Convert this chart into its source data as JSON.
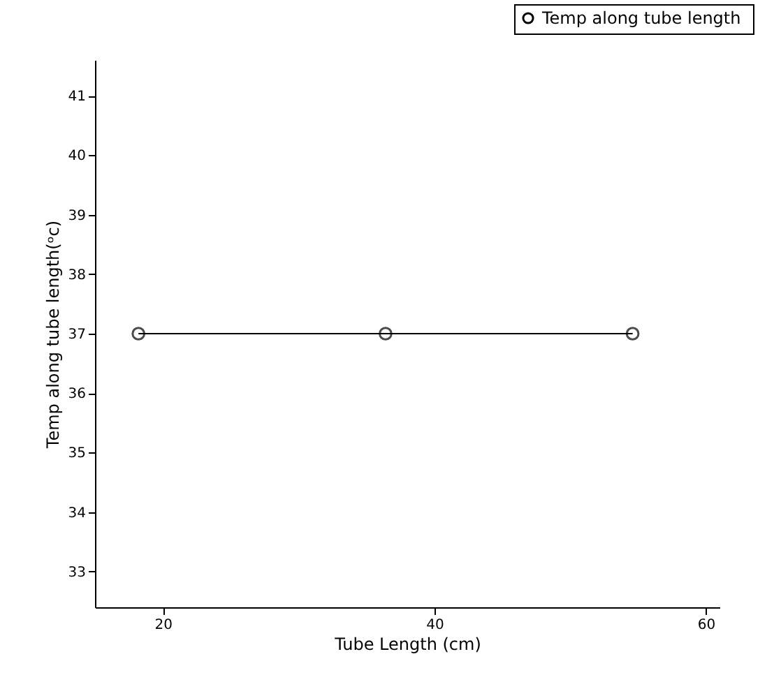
{
  "chart_data": {
    "type": "line",
    "xlabel": "Tube Length (cm)",
    "ylabel": "Temp along tube length(ᵒc)",
    "x": [
      18.2,
      36.4,
      54.6
    ],
    "series": [
      {
        "name": "Temp  along tube length",
        "color": "#000000",
        "values": [
          37,
          37,
          37
        ]
      }
    ],
    "xlim": [
      15,
      61
    ],
    "xticks": [
      20,
      40,
      60
    ],
    "ylim": [
      32.4,
      41.6
    ],
    "yticks": [
      33,
      34,
      35,
      36,
      37,
      38,
      39,
      40,
      41
    ],
    "grid": false,
    "legend": "top right",
    "marker": "circle",
    "line_style": "solid"
  }
}
